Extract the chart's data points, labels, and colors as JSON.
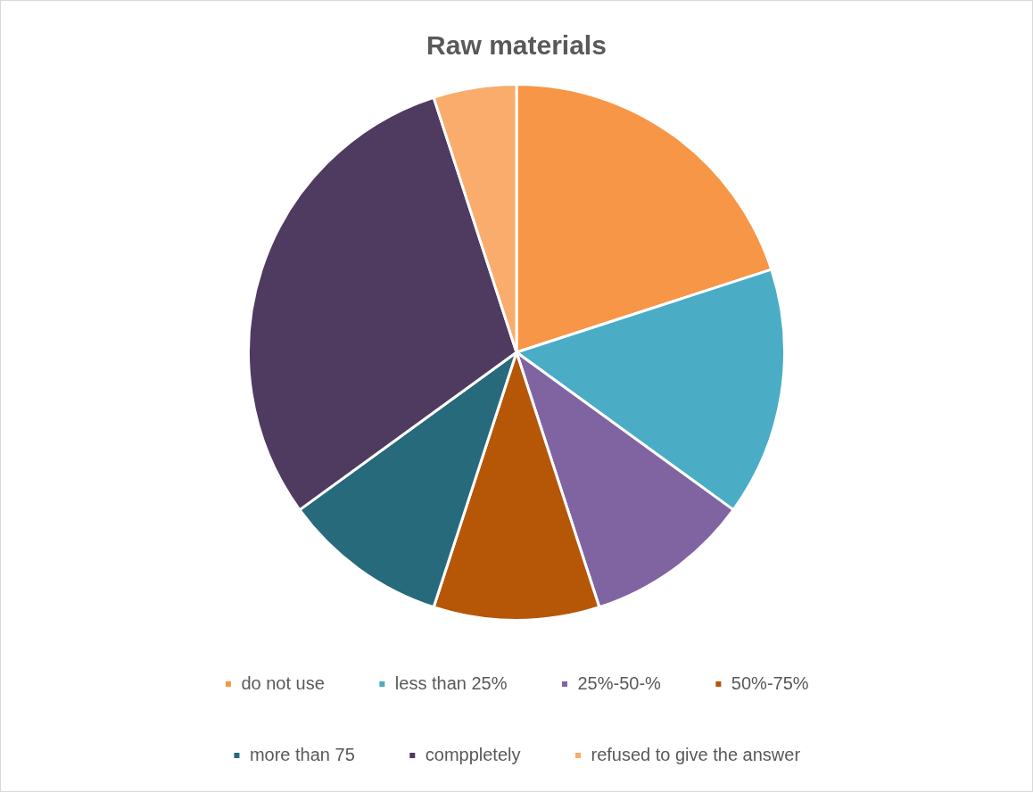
{
  "chart_data": {
    "type": "pie",
    "title": "Raw materials",
    "categories": [
      "do not use",
      "less than 25%",
      "25%-50-%",
      "50%-75%",
      "more than 75",
      "comppletely",
      "refused to give the answer"
    ],
    "values": [
      20,
      15,
      10,
      10,
      10,
      30,
      5
    ],
    "colors": [
      "#f79646",
      "#4bacc6",
      "#8064a2",
      "#b65708",
      "#276a7c",
      "#4f3a60",
      "#f9ac6b"
    ],
    "legend": "bottom"
  }
}
